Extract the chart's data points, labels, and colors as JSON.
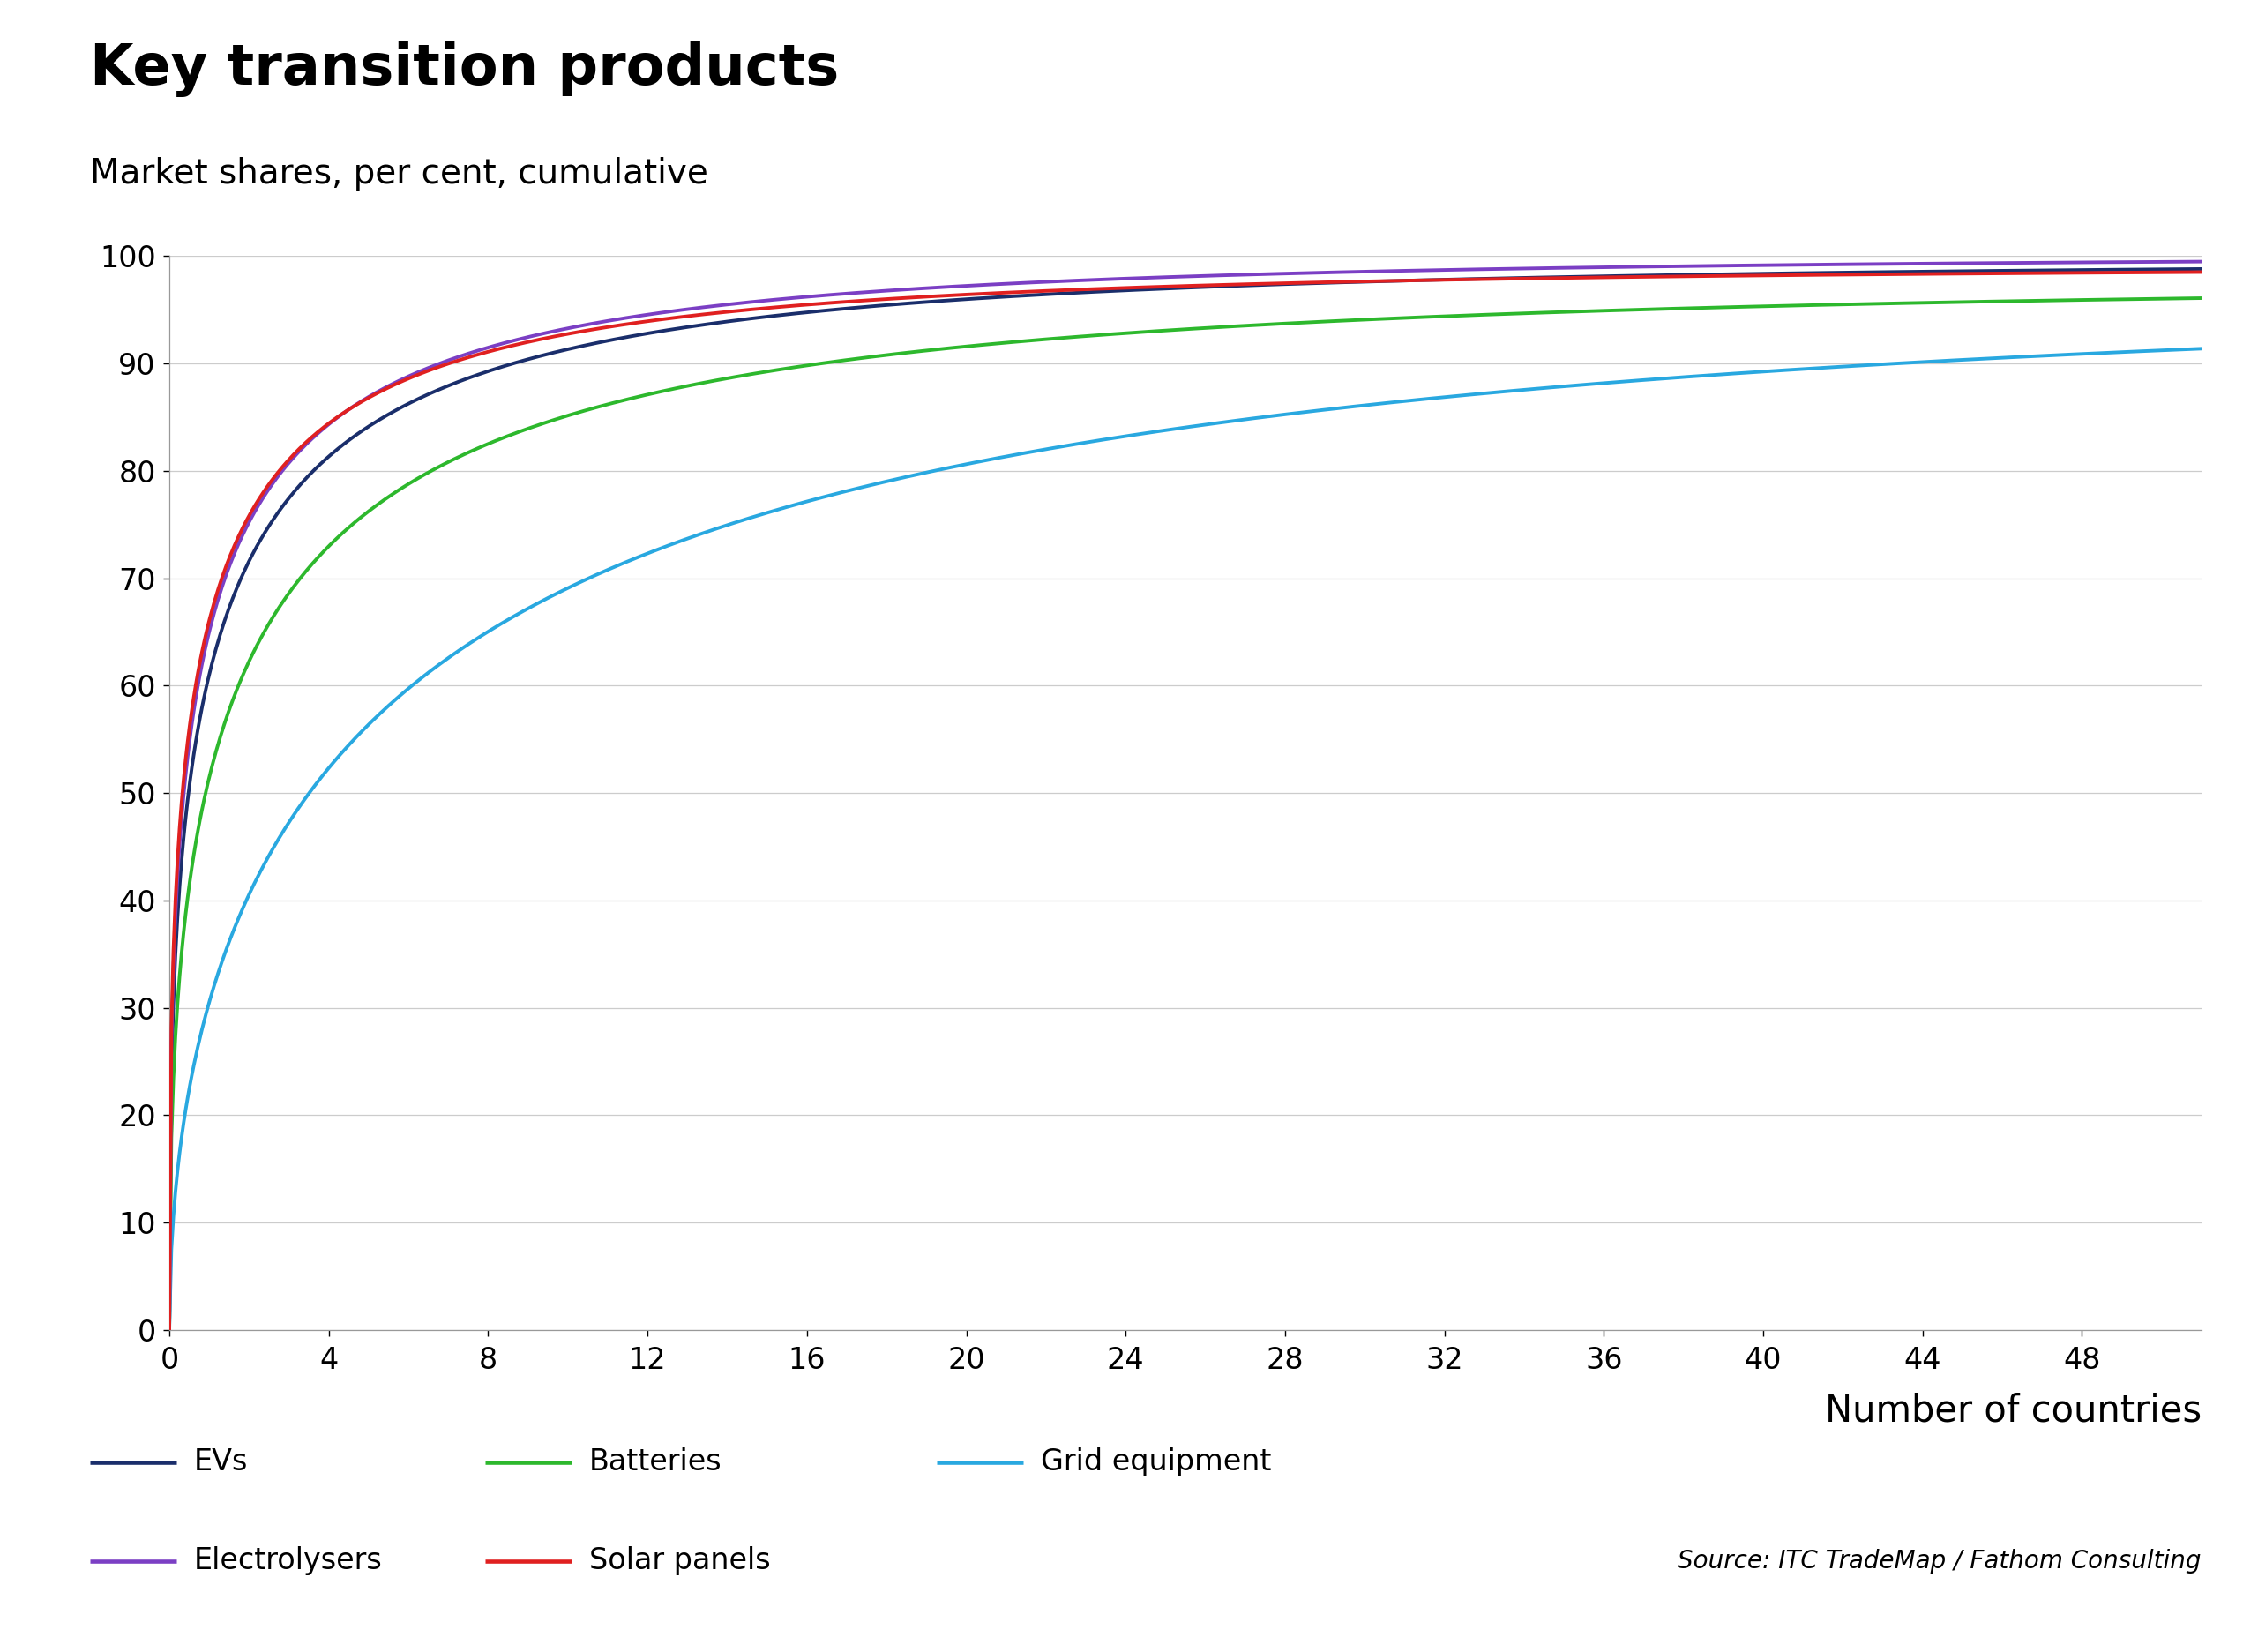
{
  "title": "Key transition products",
  "subtitle": "Market shares, per cent, cumulative",
  "xlabel": "Number of countries",
  "source": "Source: ITC TradeMap / Fathom Consulting",
  "xlim": [
    0,
    51
  ],
  "ylim": [
    0,
    100
  ],
  "xticks": [
    0,
    4,
    8,
    12,
    16,
    20,
    24,
    28,
    32,
    36,
    40,
    44,
    48
  ],
  "yticks": [
    0,
    10,
    20,
    30,
    40,
    50,
    60,
    70,
    80,
    90,
    100
  ],
  "series": {
    "EVs": {
      "color": "#1a2e6b"
    },
    "Batteries": {
      "color": "#2db82d"
    },
    "Grid equipment": {
      "color": "#29a8e0"
    },
    "Electrolysers": {
      "color": "#7b3fc4"
    },
    "Solar panels": {
      "color": "#e02020"
    }
  },
  "legend_order": [
    "EVs",
    "Batteries",
    "Grid equipment",
    "Electrolysers",
    "Solar panels"
  ],
  "background_color": "#ffffff",
  "line_width": 2.8,
  "title_fontsize": 46,
  "subtitle_fontsize": 28,
  "tick_fontsize": 24,
  "xlabel_fontsize": 30,
  "legend_fontsize": 24,
  "source_fontsize": 20
}
